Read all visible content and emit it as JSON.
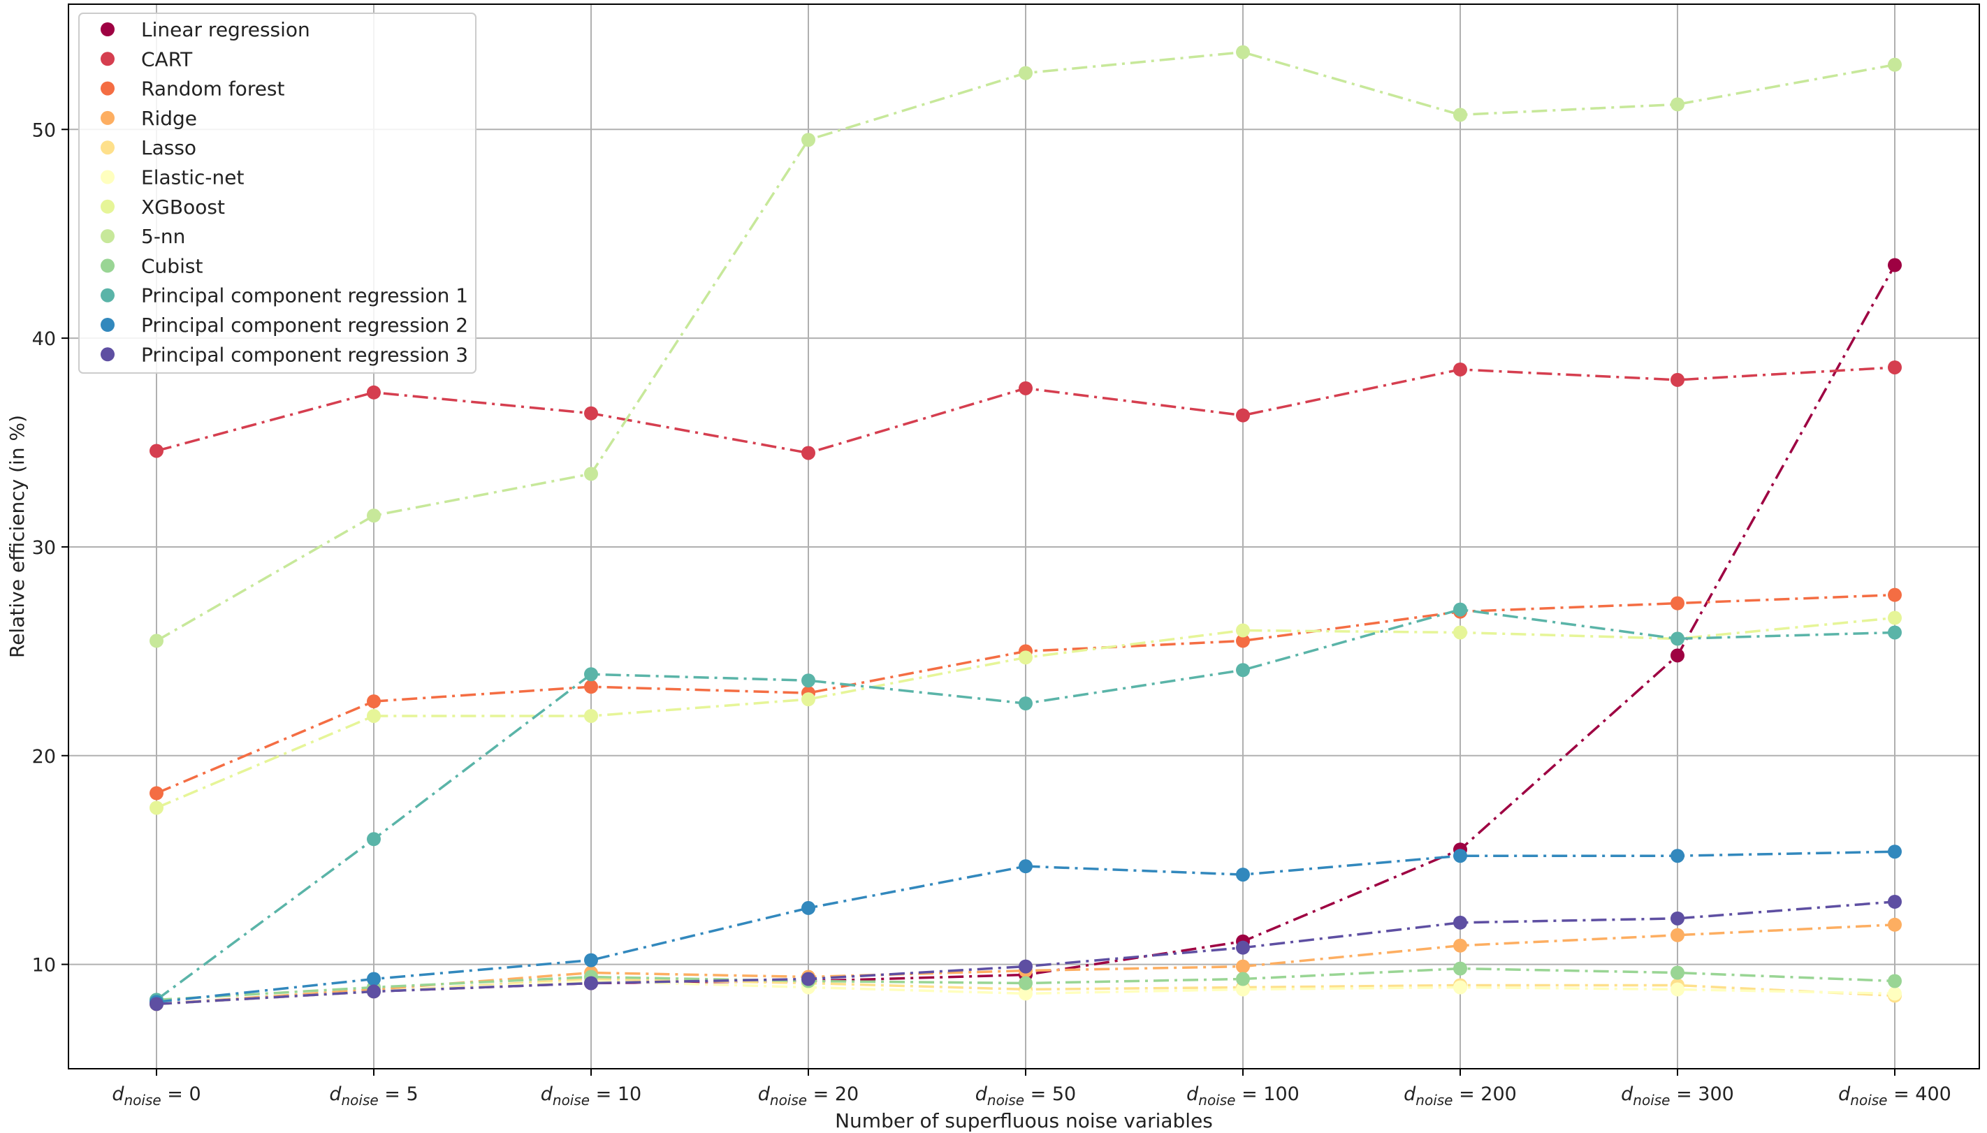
{
  "chart_data": {
    "type": "line",
    "xlabel": "Number of superfluous noise variables",
    "ylabel": "Relative efficiency (in %)",
    "x_tick_labels": [
      {
        "main": "d",
        "sub": "noise",
        "rest": " = 0"
      },
      {
        "main": "d",
        "sub": "noise",
        "rest": " = 5"
      },
      {
        "main": "d",
        "sub": "noise",
        "rest": " = 10"
      },
      {
        "main": "d",
        "sub": "noise",
        "rest": " = 20"
      },
      {
        "main": "d",
        "sub": "noise",
        "rest": " = 50"
      },
      {
        "main": "d",
        "sub": "noise",
        "rest": " = 100"
      },
      {
        "main": "d",
        "sub": "noise",
        "rest": " = 200"
      },
      {
        "main": "d",
        "sub": "noise",
        "rest": " = 300"
      },
      {
        "main": "d",
        "sub": "noise",
        "rest": " = 400"
      }
    ],
    "y_ticks": [
      10,
      20,
      30,
      40,
      50
    ],
    "ylim": [
      5,
      56
    ],
    "grid": true,
    "legend_position": "top-left",
    "line_style": "dash-dot",
    "series": [
      {
        "name": "Linear regression",
        "color": "#9e0142",
        "values": [
          8.1,
          8.7,
          9.1,
          9.2,
          9.5,
          11.1,
          15.5,
          24.8,
          43.5
        ]
      },
      {
        "name": "CART",
        "color": "#d53e4f",
        "values": [
          34.6,
          37.4,
          36.4,
          34.5,
          37.6,
          36.3,
          38.5,
          38.0,
          38.6
        ]
      },
      {
        "name": "Random forest",
        "color": "#f46d43",
        "values": [
          18.2,
          22.6,
          23.3,
          23.0,
          25.0,
          25.5,
          26.9,
          27.3,
          27.7
        ]
      },
      {
        "name": "Ridge",
        "color": "#fdae61",
        "values": [
          8.1,
          8.8,
          9.6,
          9.4,
          9.7,
          9.9,
          10.9,
          11.4,
          11.9
        ]
      },
      {
        "name": "Lasso",
        "color": "#fee08b",
        "values": [
          8.1,
          8.7,
          9.3,
          9.1,
          8.8,
          8.9,
          9.0,
          9.0,
          8.5
        ]
      },
      {
        "name": "Elastic-net",
        "color": "#ffffbf",
        "values": [
          8.1,
          8.7,
          9.2,
          8.9,
          8.6,
          8.8,
          8.9,
          8.8,
          8.6
        ]
      },
      {
        "name": "XGBoost",
        "color": "#e6f598",
        "values": [
          17.5,
          21.9,
          21.9,
          22.7,
          24.7,
          26.0,
          25.9,
          25.6,
          26.6
        ]
      },
      {
        "name": "5-nn",
        "color": "#c7e89a",
        "values": [
          25.5,
          31.5,
          33.5,
          49.5,
          52.7,
          53.7,
          50.7,
          51.2,
          53.1
        ]
      },
      {
        "name": "Cubist",
        "color": "#99d594",
        "values": [
          8.3,
          8.9,
          9.4,
          9.2,
          9.1,
          9.3,
          9.8,
          9.6,
          9.2
        ]
      },
      {
        "name": "Principal component regression 1",
        "color": "#5ab4a8",
        "values": [
          8.3,
          16.0,
          23.9,
          23.6,
          22.5,
          24.1,
          27.0,
          25.6,
          25.9
        ]
      },
      {
        "name": "Principal component regression 2",
        "color": "#3288bd",
        "values": [
          8.2,
          9.3,
          10.2,
          12.7,
          14.7,
          14.3,
          15.2,
          15.2,
          15.4
        ]
      },
      {
        "name": "Principal component regression 3",
        "color": "#5e4fa2",
        "values": [
          8.1,
          8.7,
          9.1,
          9.3,
          9.9,
          10.8,
          12.0,
          12.2,
          13.0
        ]
      }
    ]
  }
}
